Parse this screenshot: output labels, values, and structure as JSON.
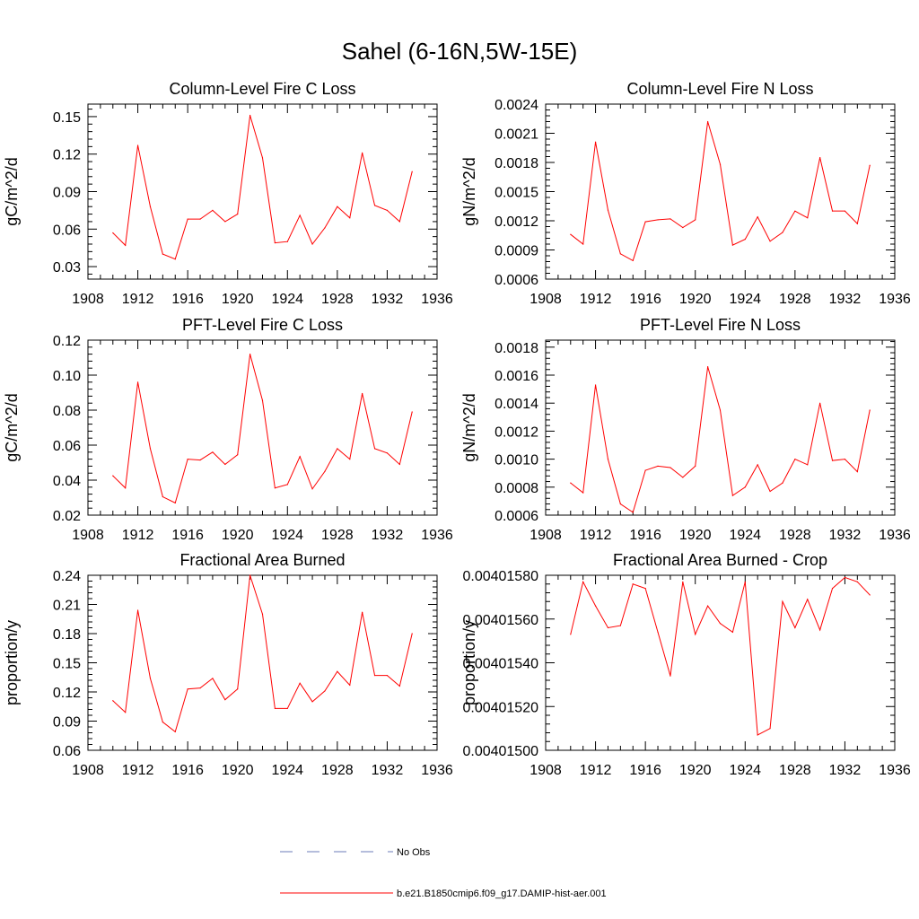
{
  "main_title": "Sahel (6-16N,5W-15E)",
  "chart_data": [
    {
      "type": "line",
      "title": "Column-Level Fire C Loss",
      "ylabel": "gC/m^2/d",
      "xlim": [
        1908,
        1936
      ],
      "ylim": [
        0.02,
        0.16
      ],
      "x_ticks": [
        "1908",
        "1912",
        "1916",
        "1920",
        "1924",
        "1928",
        "1932",
        "1936"
      ],
      "y_ticks": [
        "0.03",
        "0.06",
        "0.09",
        "0.12",
        "0.15"
      ],
      "x": [
        1910,
        1911,
        1912,
        1913,
        1914,
        1915,
        1916,
        1917,
        1918,
        1919,
        1920,
        1921,
        1922,
        1923,
        1924,
        1925,
        1926,
        1927,
        1928,
        1929,
        1930,
        1931,
        1932,
        1933,
        1934
      ],
      "series": [
        {
          "name": "b.e21.B1850cmip6.f09_g17.DAMIP-hist-aer.001",
          "values": [
            0.057,
            0.047,
            0.127,
            0.078,
            0.04,
            0.036,
            0.068,
            0.068,
            0.075,
            0.066,
            0.072,
            0.151,
            0.117,
            0.049,
            0.05,
            0.071,
            0.048,
            0.061,
            0.078,
            0.069,
            0.121,
            0.079,
            0.075,
            0.066,
            0.106
          ]
        }
      ]
    },
    {
      "type": "line",
      "title": "Column-Level Fire N Loss",
      "ylabel": "gN/m^2/d",
      "xlim": [
        1908,
        1936
      ],
      "ylim": [
        0.0006,
        0.0024
      ],
      "x_ticks": [
        "1908",
        "1912",
        "1916",
        "1920",
        "1924",
        "1928",
        "1932",
        "1936"
      ],
      "y_ticks": [
        "0.0006",
        "0.0009",
        "0.0012",
        "0.0015",
        "0.0018",
        "0.0021",
        "0.0024"
      ],
      "x": [
        1910,
        1911,
        1912,
        1913,
        1914,
        1915,
        1916,
        1917,
        1918,
        1919,
        1920,
        1921,
        1922,
        1923,
        1924,
        1925,
        1926,
        1927,
        1928,
        1929,
        1930,
        1931,
        1932,
        1933,
        1934
      ],
      "series": [
        {
          "name": "b.e21.B1850cmip6.f09_g17.DAMIP-hist-aer.001",
          "values": [
            0.00106,
            0.00096,
            0.00201,
            0.00131,
            0.00086,
            0.00079,
            0.00119,
            0.00121,
            0.00122,
            0.00113,
            0.00121,
            0.00222,
            0.00178,
            0.00095,
            0.00101,
            0.00124,
            0.00099,
            0.00108,
            0.0013,
            0.00123,
            0.00185,
            0.0013,
            0.0013,
            0.00117,
            0.00177
          ]
        }
      ]
    },
    {
      "type": "line",
      "title": "PFT-Level Fire C Loss",
      "ylabel": "gC/m^2/d",
      "xlim": [
        1908,
        1936
      ],
      "ylim": [
        0.02,
        0.12
      ],
      "x_ticks": [
        "1908",
        "1912",
        "1916",
        "1920",
        "1924",
        "1928",
        "1932",
        "1936"
      ],
      "y_ticks": [
        "0.02",
        "0.04",
        "0.06",
        "0.08",
        "0.10",
        "0.12"
      ],
      "x": [
        1910,
        1911,
        1912,
        1913,
        1914,
        1915,
        1916,
        1917,
        1918,
        1919,
        1920,
        1921,
        1922,
        1923,
        1924,
        1925,
        1926,
        1927,
        1928,
        1929,
        1930,
        1931,
        1932,
        1933,
        1934
      ],
      "series": [
        {
          "name": "b.e21.B1850cmip6.f09_g17.DAMIP-hist-aer.001",
          "values": [
            0.0425,
            0.0355,
            0.096,
            0.058,
            0.0305,
            0.027,
            0.052,
            0.0515,
            0.056,
            0.049,
            0.0545,
            0.112,
            0.0855,
            0.0355,
            0.0375,
            0.0535,
            0.035,
            0.045,
            0.058,
            0.052,
            0.0895,
            0.058,
            0.0555,
            0.049,
            0.079
          ]
        }
      ]
    },
    {
      "type": "line",
      "title": "PFT-Level Fire N Loss",
      "ylabel": "gN/m^2/d",
      "xlim": [
        1908,
        1936
      ],
      "ylim": [
        0.0006,
        0.00185
      ],
      "x_ticks": [
        "1908",
        "1912",
        "1916",
        "1920",
        "1924",
        "1928",
        "1932",
        "1936"
      ],
      "y_ticks": [
        "0.0006",
        "0.0008",
        "0.0010",
        "0.0012",
        "0.0014",
        "0.0016",
        "0.0018"
      ],
      "x": [
        1910,
        1911,
        1912,
        1913,
        1914,
        1915,
        1916,
        1917,
        1918,
        1919,
        1920,
        1921,
        1922,
        1923,
        1924,
        1925,
        1926,
        1927,
        1928,
        1929,
        1930,
        1931,
        1932,
        1933,
        1934
      ],
      "series": [
        {
          "name": "b.e21.B1850cmip6.f09_g17.DAMIP-hist-aer.001",
          "values": [
            0.00083,
            0.00076,
            0.00153,
            0.001,
            0.00068,
            0.00062,
            0.00092,
            0.00095,
            0.00094,
            0.00087,
            0.00095,
            0.00166,
            0.00135,
            0.00074,
            0.0008,
            0.00096,
            0.00077,
            0.00083,
            0.001,
            0.00096,
            0.0014,
            0.00099,
            0.001,
            0.00091,
            0.00135
          ]
        }
      ]
    },
    {
      "type": "line",
      "title": "Fractional Area Burned",
      "ylabel": "proportion/y",
      "xlim": [
        1908,
        1936
      ],
      "ylim": [
        0.06,
        0.24
      ],
      "x_ticks": [
        "1908",
        "1912",
        "1916",
        "1920",
        "1924",
        "1928",
        "1932",
        "1936"
      ],
      "y_ticks": [
        "0.06",
        "0.09",
        "0.12",
        "0.15",
        "0.18",
        "0.21",
        "0.24"
      ],
      "x": [
        1910,
        1911,
        1912,
        1913,
        1914,
        1915,
        1916,
        1917,
        1918,
        1919,
        1920,
        1921,
        1922,
        1923,
        1924,
        1925,
        1926,
        1927,
        1928,
        1929,
        1930,
        1931,
        1932,
        1933,
        1934
      ],
      "series": [
        {
          "name": "b.e21.B1850cmip6.f09_g17.DAMIP-hist-aer.001",
          "values": [
            0.111,
            0.099,
            0.204,
            0.134,
            0.089,
            0.079,
            0.123,
            0.124,
            0.134,
            0.112,
            0.123,
            0.24,
            0.2,
            0.103,
            0.103,
            0.129,
            0.11,
            0.121,
            0.141,
            0.127,
            0.202,
            0.137,
            0.137,
            0.126,
            0.18
          ]
        }
      ]
    },
    {
      "type": "line",
      "title": "Fractional Area Burned - Crop",
      "ylabel": "proportion/y",
      "xlim": [
        1908,
        1936
      ],
      "ylim": [
        0.004015,
        0.0040158
      ],
      "x_ticks": [
        "1908",
        "1912",
        "1916",
        "1920",
        "1924",
        "1928",
        "1932",
        "1936"
      ],
      "y_ticks": [
        "0.00401500",
        "0.00401520",
        "0.00401540",
        "0.00401560",
        "0.00401580"
      ],
      "x": [
        1910,
        1911,
        1912,
        1913,
        1914,
        1915,
        1916,
        1917,
        1918,
        1919,
        1920,
        1921,
        1922,
        1923,
        1924,
        1925,
        1926,
        1927,
        1928,
        1929,
        1930,
        1931,
        1932,
        1933,
        1934
      ],
      "series": [
        {
          "name": "b.e21.B1850cmip6.f09_g17.DAMIP-hist-aer.001",
          "values": [
            0.00401553,
            0.00401577,
            0.00401566,
            0.00401556,
            0.00401557,
            0.00401576,
            0.00401574,
            0.00401554,
            0.00401534,
            0.00401577,
            0.00401553,
            0.00401566,
            0.00401558,
            0.00401554,
            0.00401577,
            0.00401507,
            0.0040151,
            0.00401568,
            0.00401556,
            0.00401569,
            0.00401555,
            0.00401574,
            0.00401579,
            0.00401577,
            0.00401571
          ]
        }
      ]
    }
  ],
  "legend": [
    {
      "label": "No Obs",
      "style": "dashed",
      "color": "#6b7bb8"
    },
    {
      "label": "b.e21.B1850cmip6.f09_g17.DAMIP-hist-aer.001",
      "style": "solid",
      "color": "#ff0000"
    }
  ]
}
